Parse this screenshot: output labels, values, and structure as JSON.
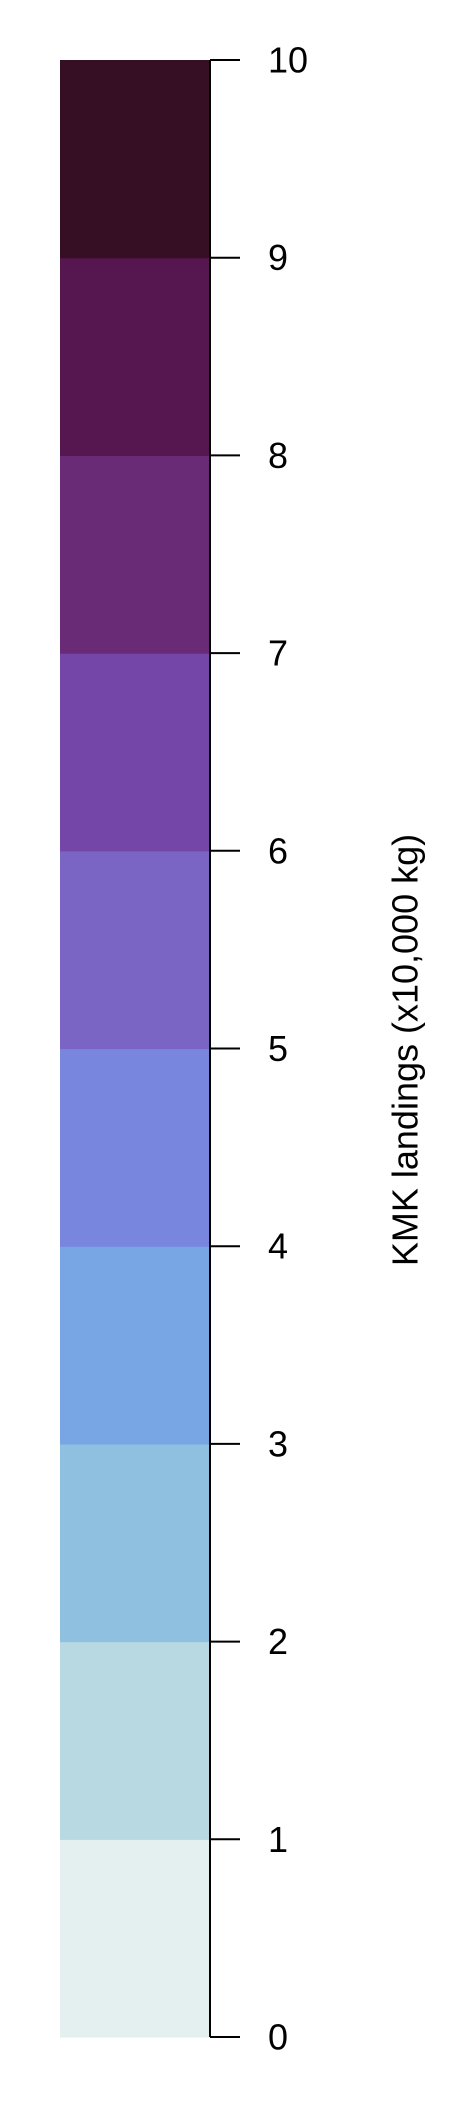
{
  "chart_data": {
    "type": "heatmap",
    "legend_type": "color-scale",
    "title": "",
    "axis_label": "KMK landings (x10,000 kg)",
    "ylim": [
      0,
      10
    ],
    "ticks": [
      0,
      1,
      2,
      3,
      4,
      5,
      6,
      7,
      8,
      9,
      10
    ],
    "tick_labels": [
      "0",
      "1",
      "2",
      "3",
      "4",
      "5",
      "6",
      "7",
      "8",
      "9",
      "10"
    ],
    "bins": [
      {
        "from": 0,
        "to": 1,
        "color": "#e3f0ef"
      },
      {
        "from": 1,
        "to": 2,
        "color": "#b8d9e2"
      },
      {
        "from": 2,
        "to": 3,
        "color": "#8fc0e0"
      },
      {
        "from": 3,
        "to": 4,
        "color": "#78a6e4"
      },
      {
        "from": 4,
        "to": 5,
        "color": "#7986de"
      },
      {
        "from": 5,
        "to": 6,
        "color": "#7a65c4"
      },
      {
        "from": 6,
        "to": 7,
        "color": "#7446a7"
      },
      {
        "from": 7,
        "to": 8,
        "color": "#6a2b76"
      },
      {
        "from": 8,
        "to": 9,
        "color": "#561650"
      },
      {
        "from": 9,
        "to": 10,
        "color": "#360f25"
      }
    ],
    "axis_color": "#000000"
  }
}
